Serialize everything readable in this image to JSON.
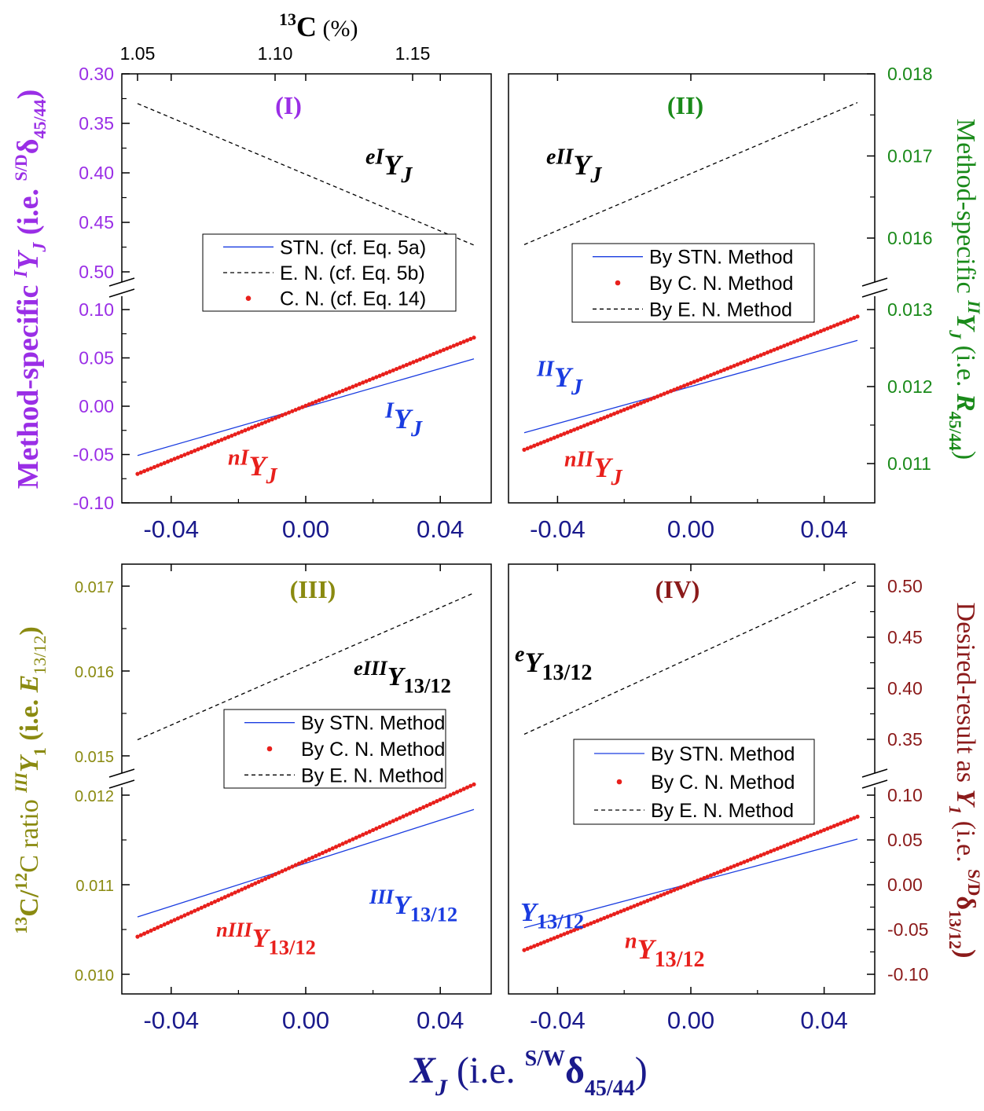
{
  "colors": {
    "purple": "#9a2ee6",
    "green": "#1a8a1a",
    "olive": "#8a8a10",
    "maroon": "#8b1a1a",
    "navy": "#1a1a8c",
    "blue": "#1a3ce0",
    "red": "#e8201c",
    "black": "#000000"
  },
  "figure": {
    "top_axis": {
      "label_sup": "13",
      "label_main": "C",
      "label_unit": "(%)",
      "ticks": [
        "1.05",
        "1.10",
        "1.15"
      ]
    },
    "x_axis": {
      "label_main": "X",
      "label_sub": "J",
      "label_mid": "(i.e. ",
      "label_sup": "S/W",
      "label_delta": "δ",
      "label_sub2": "45/44",
      "label_end": ")"
    },
    "y_left_top": {
      "text": "Method-specific ",
      "sup": "I",
      "main": "Y",
      "sub": "J",
      "mid": " (i.e. ",
      "sup2": "S/D",
      "delta": "δ",
      "sub2": "45/44",
      "end": ")"
    },
    "y_right_top": {
      "text": "Method-specific ",
      "sup": "II",
      "main": "Y",
      "sub": "J",
      "mid": " (i.e. ",
      "main2": "R",
      "sub2": "45/44",
      "end": ")"
    },
    "y_left_bottom": {
      "sup": "13",
      "mid1": "C/",
      "sup2": "12",
      "mid2": "C ratio ",
      "sup3": "III",
      "main": "Y",
      "sub": "1",
      "mid": " (i.e. ",
      "main2": "E",
      "sub2": "13/12",
      "end": ")"
    },
    "y_right_bottom": {
      "text": "Desired-result as ",
      "main": "Y",
      "sub": "1",
      "mid": " (i.e. ",
      "sup2": "S/D",
      "delta": "δ",
      "sub2": "13/12",
      "end": ")"
    }
  },
  "chart_data": [
    {
      "type": "line",
      "panel_label": "(I)",
      "x": [
        -0.05,
        0.05
      ],
      "x_ticks": [
        "-0.04",
        "0.00",
        "0.04"
      ],
      "y_ticks_upper": [
        "0.30",
        "0.35",
        "0.40",
        "0.45",
        "0.50"
      ],
      "y_ticks_lower": [
        "-0.10",
        "-0.05",
        "0.00",
        "0.05",
        "0.10"
      ],
      "series": [
        {
          "name": "STN. (cf. Eq. 5a)",
          "style": "solid",
          "color": "#1a3ce0",
          "y": [
            -0.051,
            0.049
          ]
        },
        {
          "name": "E. N. (cf. Eq. 5b)",
          "style": "dashed",
          "color": "#000000",
          "y": [
            0.33,
            0.473
          ]
        },
        {
          "name": "C. N. (cf. Eq. 14)",
          "style": "dots",
          "color": "#e8201c",
          "y": [
            -0.07,
            0.071
          ]
        }
      ],
      "annotations": [
        {
          "pre": "e",
          "sup": "I",
          "main": "Y",
          "sub": "J",
          "color": "#000000"
        },
        {
          "pre": "",
          "sup": "I",
          "main": "Y",
          "sub": "J",
          "color": "#1a3ce0"
        },
        {
          "pre": "n",
          "sup": "I",
          "main": "Y",
          "sub": "J",
          "color": "#e8201c"
        }
      ]
    },
    {
      "type": "line",
      "panel_label": "(II)",
      "x": [
        -0.05,
        0.05
      ],
      "x_ticks": [
        "-0.04",
        "0.00",
        "0.04"
      ],
      "y_ticks_upper": [
        "0.016",
        "0.017",
        "0.018"
      ],
      "y_ticks_lower": [
        "0.011",
        "0.012",
        "0.013"
      ],
      "series": [
        {
          "name": "By STN. Method",
          "style": "solid",
          "color": "#1a3ce0",
          "y": [
            0.0114,
            0.0126
          ]
        },
        {
          "name": "By C. N. Method",
          "style": "dots",
          "color": "#e8201c",
          "y": [
            0.01118,
            0.01291
          ]
        },
        {
          "name": "By E. N. Method",
          "style": "dashed",
          "color": "#000000",
          "y": [
            0.01592,
            0.01765
          ]
        }
      ],
      "annotations": [
        {
          "pre": "e",
          "sup": "II",
          "main": "Y",
          "sub": "J",
          "color": "#000000"
        },
        {
          "pre": "",
          "sup": "II",
          "main": "Y",
          "sub": "J",
          "color": "#1a3ce0"
        },
        {
          "pre": "n",
          "sup": "II",
          "main": "Y",
          "sub": "J",
          "color": "#e8201c"
        }
      ]
    },
    {
      "type": "line",
      "panel_label": "(III)",
      "x": [
        -0.05,
        0.05
      ],
      "x_ticks": [
        "-0.04",
        "0.00",
        "0.04"
      ],
      "y_ticks_upper": [
        "0.015",
        "0.016",
        "0.017"
      ],
      "y_ticks_lower": [
        "0.010",
        "0.011",
        "0.012"
      ],
      "series": [
        {
          "name": "By STN. Method",
          "style": "solid",
          "color": "#1a3ce0",
          "y": [
            0.01064,
            0.01184
          ]
        },
        {
          "name": "By C. N. Method",
          "style": "dots",
          "color": "#e8201c",
          "y": [
            0.01042,
            0.01212
          ]
        },
        {
          "name": "By E. N. Method",
          "style": "dashed",
          "color": "#000000",
          "y": [
            0.01519,
            0.01692
          ]
        }
      ],
      "annotations": [
        {
          "pre": "e",
          "sup": "III",
          "main": "Y",
          "sub": "13/12",
          "color": "#000000"
        },
        {
          "pre": "",
          "sup": "III",
          "main": "Y",
          "sub": "13/12",
          "color": "#1a3ce0"
        },
        {
          "pre": "n",
          "sup": "III",
          "main": "Y",
          "sub": "13/12",
          "color": "#e8201c"
        }
      ]
    },
    {
      "type": "line",
      "panel_label": "(IV)",
      "x": [
        -0.05,
        0.05
      ],
      "x_ticks": [
        "-0.04",
        "0.00",
        "0.04"
      ],
      "y_ticks_upper": [
        "0.35",
        "0.40",
        "0.45",
        "0.50"
      ],
      "y_ticks_lower": [
        "-0.10",
        "-0.05",
        "0.00",
        "0.05",
        "0.10"
      ],
      "series": [
        {
          "name": "By STN. Method",
          "style": "solid",
          "color": "#1a3ce0",
          "y": [
            -0.048,
            0.051
          ]
        },
        {
          "name": "By C. N. Method",
          "style": "dots",
          "color": "#e8201c",
          "y": [
            -0.073,
            0.076
          ]
        },
        {
          "name": "By E. N. Method",
          "style": "dashed",
          "color": "#000000",
          "y": [
            0.355,
            0.505
          ]
        }
      ],
      "annotations": [
        {
          "pre": "",
          "sup": "e",
          "main": "Y",
          "sub": "13/12",
          "color": "#000000"
        },
        {
          "pre": "",
          "sup": "",
          "main": "Y",
          "sub": "13/12",
          "color": "#1a3ce0"
        },
        {
          "pre": "",
          "sup": "n",
          "main": "Y",
          "sub": "13/12",
          "color": "#e8201c"
        }
      ]
    }
  ]
}
